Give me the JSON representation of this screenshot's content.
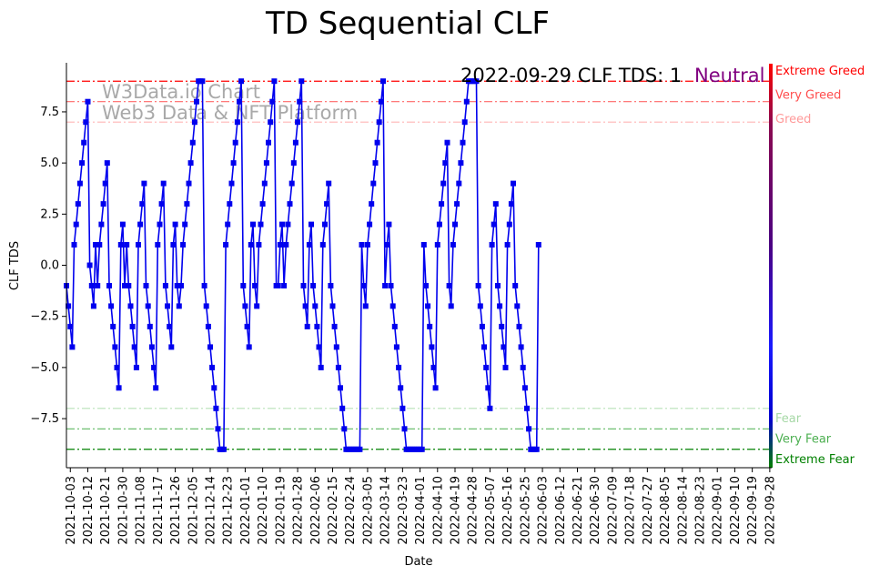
{
  "chart_data": {
    "type": "line",
    "title": "TD Sequential CLF",
    "xlabel": "Date",
    "ylabel": "CLF TDS",
    "ylim": [
      -9.9,
      9.9
    ],
    "yticks": [
      -7.5,
      -5.0,
      -2.5,
      0.0,
      2.5,
      5.0,
      7.5
    ],
    "ytick_labels": [
      "−7.5",
      "−5.0",
      "−2.5",
      "0.0",
      "2.5",
      "5.0",
      "7.5"
    ],
    "start_date": "2021-10-01",
    "end_date": "2022-09-29",
    "xtick_labels": [
      "2021-10-03",
      "2021-10-12",
      "2021-10-21",
      "2021-10-30",
      "2021-11-08",
      "2021-11-17",
      "2021-11-26",
      "2021-12-05",
      "2021-12-14",
      "2021-12-23",
      "2022-01-01",
      "2022-01-10",
      "2022-01-19",
      "2022-01-28",
      "2022-02-06",
      "2022-02-15",
      "2022-02-24",
      "2022-03-05",
      "2022-03-14",
      "2022-03-23",
      "2022-04-01",
      "2022-04-10",
      "2022-04-19",
      "2022-04-28",
      "2022-05-07",
      "2022-05-16",
      "2022-05-25",
      "2022-06-03",
      "2022-06-12",
      "2022-06-21",
      "2022-06-30",
      "2022-07-09",
      "2022-07-18",
      "2022-07-27",
      "2022-08-05",
      "2022-08-14",
      "2022-08-23",
      "2022-09-01",
      "2022-09-10",
      "2022-09-19",
      "2022-09-28"
    ],
    "series": [
      {
        "name": "CLF TDS",
        "color": "#0000ee",
        "values": [
          -1,
          -2,
          -3,
          -4,
          1,
          2,
          3,
          4,
          5,
          6,
          7,
          8,
          0,
          -1,
          -2,
          1,
          -1,
          1,
          2,
          3,
          4,
          5,
          -1,
          -2,
          -3,
          -4,
          -5,
          -6,
          1,
          2,
          -1,
          1,
          -1,
          -2,
          -3,
          -4,
          -5,
          1,
          2,
          3,
          4,
          -1,
          -2,
          -3,
          -4,
          -5,
          -6,
          1,
          2,
          3,
          4,
          -1,
          -2,
          -3,
          -4,
          1,
          2,
          -1,
          -2,
          -1,
          1,
          2,
          3,
          4,
          5,
          6,
          7,
          8,
          9,
          9,
          9,
          -1,
          -2,
          -3,
          -4,
          -5,
          -6,
          -7,
          -8,
          -9,
          -9,
          -9,
          1,
          2,
          3,
          4,
          5,
          6,
          7,
          8,
          9,
          -1,
          -2,
          -3,
          -4,
          1,
          2,
          -1,
          -2,
          1,
          2,
          3,
          4,
          5,
          6,
          7,
          8,
          9,
          -1,
          -1,
          1,
          2,
          -1,
          1,
          2,
          3,
          4,
          5,
          6,
          7,
          8,
          9,
          -1,
          -2,
          -3,
          1,
          2,
          -1,
          -2,
          -3,
          -4,
          -5,
          1,
          2,
          3,
          4,
          -1,
          -2,
          -3,
          -4,
          -5,
          -6,
          -7,
          -8,
          -9,
          -9,
          -9,
          -9,
          -9,
          -9,
          -9,
          -9,
          1,
          -1,
          -2,
          1,
          2,
          3,
          4,
          5,
          6,
          7,
          8,
          9,
          -1,
          1,
          2,
          -1,
          -2,
          -3,
          -4,
          -5,
          -6,
          -7,
          -8,
          -9,
          -9,
          -9,
          -9,
          -9,
          -9,
          -9,
          -9,
          -9,
          1,
          -1,
          -2,
          -3,
          -4,
          -5,
          -6,
          1,
          2,
          3,
          4,
          5,
          6,
          -1,
          -2,
          1,
          2,
          3,
          4,
          5,
          6,
          7,
          8,
          9,
          9,
          9,
          9,
          9,
          -1,
          -2,
          -3,
          -4,
          -5,
          -6,
          -7,
          1,
          2,
          3,
          -1,
          -2,
          -3,
          -4,
          -5,
          1,
          2,
          3,
          4,
          -1,
          -2,
          -3,
          -4,
          -5,
          -6,
          -7,
          -8,
          -9,
          -9,
          -9,
          -9,
          1
        ]
      }
    ],
    "zones": [
      {
        "name": "Extreme Greed",
        "value": 9,
        "color": "#ff0000",
        "opacity": 1.0
      },
      {
        "name": "Very Greed",
        "value": 8,
        "color": "#ff4d4d",
        "opacity": 0.85
      },
      {
        "name": "Greed",
        "value": 7,
        "color": "#ff9999",
        "opacity": 0.7
      },
      {
        "name": "Fear",
        "value": -7,
        "color": "#a6d8a6",
        "opacity": 0.8
      },
      {
        "name": "Very Fear",
        "value": -8,
        "color": "#4caf50",
        "opacity": 0.9
      },
      {
        "name": "Extreme Fear",
        "value": -9,
        "color": "#008000",
        "opacity": 1.0
      }
    ],
    "annotation": {
      "status": "2022-09-29 CLF TDS: 1",
      "mood": "Neutral",
      "mood_color": "#800080"
    },
    "watermark": [
      "W3Data.io Chart",
      "Web3 Data & NFT Platform"
    ]
  }
}
